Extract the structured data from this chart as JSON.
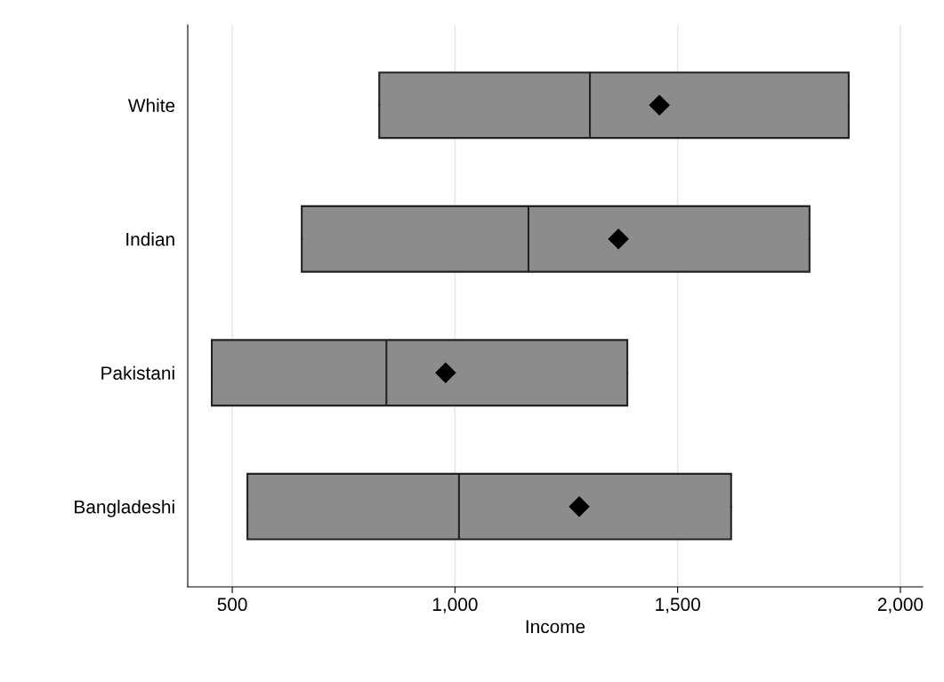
{
  "chart_data": {
    "type": "box",
    "orientation": "horizontal",
    "xlabel": "Income",
    "categories": [
      "White",
      "Indian",
      "Pakistani",
      "Bangladeshi"
    ],
    "boxes": [
      {
        "low": 830,
        "q1": 830,
        "median": 1303,
        "q3": 1884,
        "high": 1884,
        "mean": 1459
      },
      {
        "low": 656,
        "q1": 656,
        "median": 1165,
        "q3": 1796,
        "high": 1796,
        "mean": 1367
      },
      {
        "low": 454,
        "q1": 454,
        "median": 846,
        "q3": 1387,
        "high": 1387,
        "mean": 979
      },
      {
        "low": 534,
        "q1": 534,
        "median": 1009,
        "q3": 1620,
        "high": 1620,
        "mean": 1279
      }
    ],
    "color": "#8c8c8c",
    "marker": "diamond",
    "xlim": [
      400,
      2050
    ],
    "xticks": [
      {
        "value": 500,
        "label": "500"
      },
      {
        "value": 1000,
        "label": "1,000"
      },
      {
        "value": 1500,
        "label": "1,500"
      },
      {
        "value": 2000,
        "label": "2,000"
      }
    ],
    "grid": "x"
  }
}
